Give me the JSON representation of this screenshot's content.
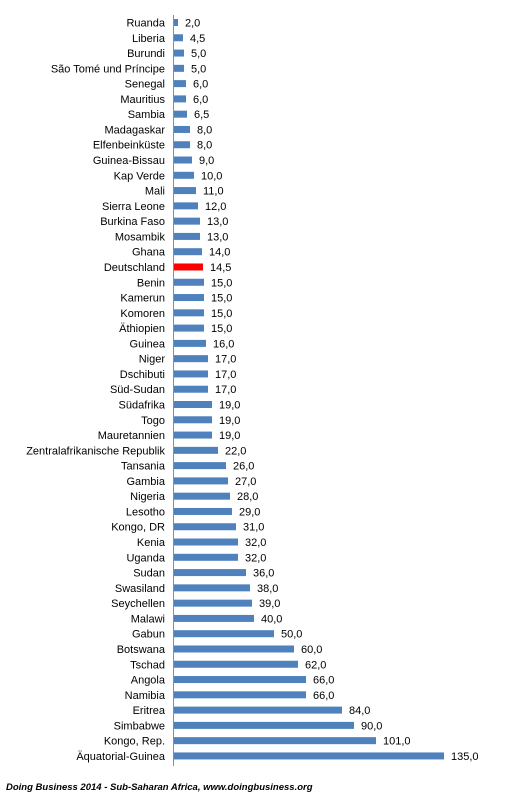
{
  "chart_data": {
    "type": "bar",
    "orientation": "horizontal",
    "categories": [
      "Ruanda",
      "Liberia",
      "Burundi",
      "São Tomé und Príncipe",
      "Senegal",
      "Mauritius",
      "Sambia",
      "Madagaskar",
      "Elfenbeinküste",
      "Guinea-Bissau",
      "Kap Verde",
      "Mali",
      "Sierra Leone",
      "Burkina Faso",
      "Mosambik",
      "Ghana",
      "Deutschland",
      "Benin",
      "Kamerun",
      "Komoren",
      "Äthiopien",
      "Guinea",
      "Niger",
      "Dschibuti",
      "Süd-Sudan",
      "Südafrika",
      "Togo",
      "Mauretannien",
      "Zentralafrikanische Republik",
      "Tansania",
      "Gambia",
      "Nigeria",
      "Lesotho",
      "Kongo, DR",
      "Kenia",
      "Uganda",
      "Sudan",
      "Swasiland",
      "Seychellen",
      "Malawi",
      "Gabun",
      "Botswana",
      "Tschad",
      "Angola",
      "Namibia",
      "Eritrea",
      "Simbabwe",
      "Kongo, Rep.",
      "Äquatorial-Guinea"
    ],
    "values": [
      2.0,
      4.5,
      5.0,
      5.0,
      6.0,
      6.0,
      6.5,
      8.0,
      8.0,
      9.0,
      10.0,
      11.0,
      12.0,
      13.0,
      13.0,
      14.0,
      14.5,
      15.0,
      15.0,
      15.0,
      15.0,
      16.0,
      17.0,
      17.0,
      17.0,
      19.0,
      19.0,
      19.0,
      22.0,
      26.0,
      27.0,
      28.0,
      29.0,
      31.0,
      32.0,
      32.0,
      36.0,
      38.0,
      39.0,
      40.0,
      50.0,
      60.0,
      62.0,
      66.0,
      66.0,
      84.0,
      90.0,
      101.0,
      135.0
    ],
    "value_labels": [
      "2,0",
      "4,5",
      "5,0",
      "5,0",
      "6,0",
      "6,0",
      "6,5",
      "8,0",
      "8,0",
      "9,0",
      "10,0",
      "11,0",
      "12,0",
      "13,0",
      "13,0",
      "14,0",
      "14,5",
      "15,0",
      "15,0",
      "15,0",
      "15,0",
      "16,0",
      "17,0",
      "17,0",
      "17,0",
      "19,0",
      "19,0",
      "19,0",
      "22,0",
      "26,0",
      "27,0",
      "28,0",
      "29,0",
      "31,0",
      "32,0",
      "32,0",
      "36,0",
      "38,0",
      "39,0",
      "40,0",
      "50,0",
      "60,0",
      "62,0",
      "66,0",
      "66,0",
      "84,0",
      "90,0",
      "101,0",
      "135,0"
    ],
    "highlight_category": "Deutschland",
    "bar_color": "#4f81bd",
    "highlight_color": "#ff0000",
    "xlim": [
      0,
      135
    ],
    "grid": false,
    "legend": "none",
    "title": "",
    "xlabel": "",
    "ylabel": ""
  },
  "source_note": "Doing Business 2014 - Sub-Saharan Africa, www.doingbusiness.org"
}
